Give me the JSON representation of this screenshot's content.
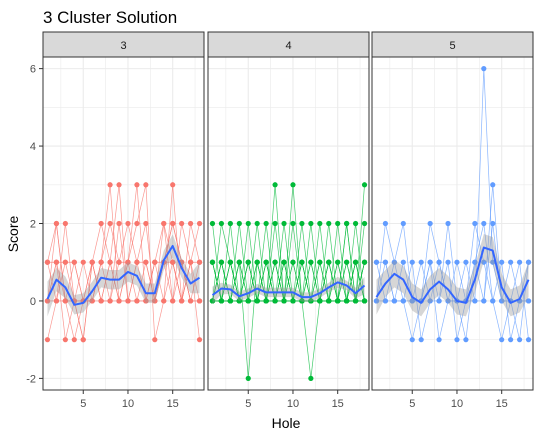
{
  "chart_data": {
    "type": "line",
    "title": "3 Cluster Solution",
    "xlabel": "Hole",
    "ylabel": "Score",
    "facets": [
      "3",
      "4",
      "5"
    ],
    "xlim": [
      0.5,
      18.5
    ],
    "ylim": [
      -2.3,
      6.3
    ],
    "x_ticks": [
      5,
      10,
      15
    ],
    "x_tick_labels": [
      "5",
      "10",
      "15"
    ],
    "y_ticks": [
      -2,
      0,
      2,
      4,
      6
    ],
    "y_tick_labels": [
      "-2",
      "0",
      "2",
      "4",
      "6"
    ],
    "grid": true,
    "colors": {
      "3": "#F8766D",
      "4": "#00BA38",
      "5": "#619CFF",
      "smooth": "#3366FF",
      "ribbon": "#999999",
      "strip": "#D9D9D9",
      "panel_border": "#333333",
      "grid": "#EBEBEB"
    },
    "panels": [
      {
        "facet": "3",
        "smooth": [
          [
            1,
            0.05
          ],
          [
            2,
            0.55
          ],
          [
            3,
            0.35
          ],
          [
            4,
            -0.1
          ],
          [
            5,
            -0.05
          ],
          [
            6,
            0.25
          ],
          [
            7,
            0.6
          ],
          [
            8,
            0.55
          ],
          [
            9,
            0.55
          ],
          [
            10,
            0.75
          ],
          [
            11,
            0.65
          ],
          [
            12,
            0.2
          ],
          [
            13,
            0.2
          ],
          [
            14,
            1.05
          ],
          [
            15,
            1.42
          ],
          [
            16,
            0.85
          ],
          [
            17,
            0.45
          ],
          [
            18,
            0.6
          ]
        ],
        "smooth_se": [
          0.45,
          0.3,
          0.28,
          0.25,
          0.25,
          0.25,
          0.25,
          0.25,
          0.25,
          0.25,
          0.25,
          0.25,
          0.25,
          0.25,
          0.3,
          0.25,
          0.25,
          0.4
        ],
        "series": [
          [
            0,
            1,
            1,
            0,
            -1,
            1,
            0,
            1,
            3,
            0,
            1,
            2,
            0,
            1,
            0,
            1,
            0,
            1
          ],
          [
            -1,
            0,
            2,
            0,
            0,
            0,
            1,
            0,
            0,
            1,
            0,
            0,
            1,
            2,
            0,
            2,
            1,
            0
          ],
          [
            1,
            2,
            0,
            -1,
            0,
            1,
            0,
            1,
            0,
            0,
            1,
            0,
            1,
            0,
            3,
            0,
            1,
            2
          ],
          [
            0,
            0,
            1,
            1,
            0,
            0,
            1,
            2,
            1,
            2,
            1,
            1,
            0,
            1,
            2,
            1,
            0,
            0
          ],
          [
            1,
            1,
            0,
            0,
            1,
            0,
            0,
            0,
            1,
            1,
            2,
            3,
            -1,
            0,
            1,
            0,
            2,
            1
          ],
          [
            0,
            2,
            0,
            0,
            -1,
            1,
            2,
            1,
            0,
            0,
            0,
            1,
            0,
            1,
            1,
            0,
            1,
            -1
          ],
          [
            1,
            0,
            0,
            1,
            0,
            0,
            1,
            3,
            0,
            1,
            3,
            0,
            1,
            1,
            2,
            1,
            0,
            0
          ],
          [
            0,
            1,
            -1,
            0,
            0,
            1,
            0,
            0,
            2,
            0,
            0,
            0,
            0,
            2,
            1,
            0,
            1,
            1
          ]
        ]
      },
      {
        "facet": "4",
        "smooth": [
          [
            1,
            0.15
          ],
          [
            2,
            0.32
          ],
          [
            3,
            0.3
          ],
          [
            4,
            0.12
          ],
          [
            5,
            0.2
          ],
          [
            6,
            0.32
          ],
          [
            7,
            0.22
          ],
          [
            8,
            0.22
          ],
          [
            9,
            0.22
          ],
          [
            10,
            0.22
          ],
          [
            11,
            0.1
          ],
          [
            12,
            0.1
          ],
          [
            13,
            0.2
          ],
          [
            14,
            0.35
          ],
          [
            15,
            0.48
          ],
          [
            16,
            0.4
          ],
          [
            17,
            0.2
          ],
          [
            18,
            0.4
          ]
        ],
        "smooth_se": [
          0.22,
          0.15,
          0.12,
          0.12,
          0.12,
          0.12,
          0.12,
          0.12,
          0.12,
          0.12,
          0.12,
          0.12,
          0.12,
          0.12,
          0.14,
          0.12,
          0.14,
          0.22
        ],
        "series": [
          [
            0,
            1,
            0,
            0,
            0,
            1,
            0,
            1,
            0,
            0,
            1,
            0,
            0,
            0,
            1,
            0,
            0,
            1
          ],
          [
            1,
            0,
            0,
            1,
            0,
            0,
            0,
            0,
            1,
            0,
            0,
            0,
            1,
            0,
            0,
            1,
            0,
            0
          ],
          [
            0,
            2,
            1,
            0,
            1,
            0,
            1,
            0,
            0,
            3,
            0,
            0,
            0,
            1,
            0,
            0,
            1,
            0
          ],
          [
            0,
            0,
            0,
            1,
            -2,
            1,
            0,
            1,
            0,
            0,
            1,
            0,
            0,
            0,
            0,
            0,
            0,
            1
          ],
          [
            0,
            0,
            1,
            0,
            0,
            0,
            0,
            3,
            0,
            0,
            0,
            -2,
            0,
            0,
            0,
            2,
            0,
            0
          ],
          [
            1,
            0,
            2,
            0,
            1,
            0,
            2,
            0,
            1,
            0,
            0,
            1,
            0,
            1,
            0,
            0,
            2,
            0
          ],
          [
            0,
            1,
            0,
            0,
            0,
            2,
            0,
            0,
            0,
            1,
            0,
            0,
            2,
            0,
            1,
            0,
            0,
            0
          ],
          [
            0,
            0,
            0,
            2,
            0,
            0,
            1,
            0,
            2,
            0,
            1,
            0,
            0,
            0,
            0,
            1,
            0,
            3
          ],
          [
            0,
            1,
            0,
            0,
            0,
            1,
            0,
            0,
            0,
            0,
            2,
            0,
            1,
            0,
            2,
            0,
            0,
            2
          ],
          [
            0,
            0,
            1,
            0,
            2,
            0,
            0,
            2,
            0,
            0,
            0,
            1,
            0,
            2,
            0,
            0,
            1,
            0
          ],
          [
            2,
            0,
            0,
            1,
            0,
            0,
            0,
            1,
            0,
            1,
            0,
            0,
            0,
            0,
            0,
            2,
            0,
            0
          ],
          [
            0,
            0,
            0,
            0,
            1,
            0,
            1,
            0,
            1,
            0,
            0,
            2,
            0,
            1,
            0,
            0,
            0,
            1
          ],
          [
            1,
            0,
            1,
            0,
            0,
            0,
            0,
            0,
            0,
            2,
            0,
            0,
            0,
            0,
            0,
            0,
            1,
            0
          ]
        ]
      },
      {
        "facet": "5",
        "smooth": [
          [
            1,
            0.1
          ],
          [
            2,
            0.45
          ],
          [
            3,
            0.7
          ],
          [
            4,
            0.55
          ],
          [
            5,
            0.1
          ],
          [
            6,
            -0.05
          ],
          [
            7,
            0.3
          ],
          [
            8,
            0.5
          ],
          [
            9,
            0.3
          ],
          [
            10,
            0.0
          ],
          [
            11,
            -0.05
          ],
          [
            12,
            0.55
          ],
          [
            13,
            1.38
          ],
          [
            14,
            1.3
          ],
          [
            15,
            0.35
          ],
          [
            16,
            -0.05
          ],
          [
            17,
            0.05
          ],
          [
            18,
            0.55
          ]
        ],
        "smooth_se": [
          0.45,
          0.35,
          0.35,
          0.35,
          0.35,
          0.35,
          0.35,
          0.35,
          0.35,
          0.35,
          0.35,
          0.35,
          0.35,
          0.35,
          0.35,
          0.35,
          0.35,
          0.45
        ],
        "series": [
          [
            0,
            2,
            1,
            0,
            -1,
            0,
            1,
            0,
            1,
            -1,
            0,
            0,
            6,
            1,
            0,
            1,
            0,
            0
          ],
          [
            1,
            1,
            0,
            0,
            0,
            1,
            0,
            1,
            0,
            0,
            1,
            0,
            0,
            3,
            0,
            0,
            -1,
            1
          ],
          [
            0,
            0,
            1,
            2,
            0,
            0,
            2,
            1,
            0,
            1,
            0,
            1,
            2,
            0,
            1,
            -1,
            0,
            0
          ],
          [
            1,
            0,
            0,
            0,
            1,
            -1,
            0,
            0,
            2,
            0,
            -1,
            1,
            0,
            2,
            0,
            0,
            1,
            -1
          ],
          [
            0,
            1,
            0,
            1,
            0,
            0,
            1,
            -1,
            0,
            0,
            0,
            2,
            1,
            0,
            -1,
            0,
            0,
            1
          ]
        ]
      }
    ]
  }
}
